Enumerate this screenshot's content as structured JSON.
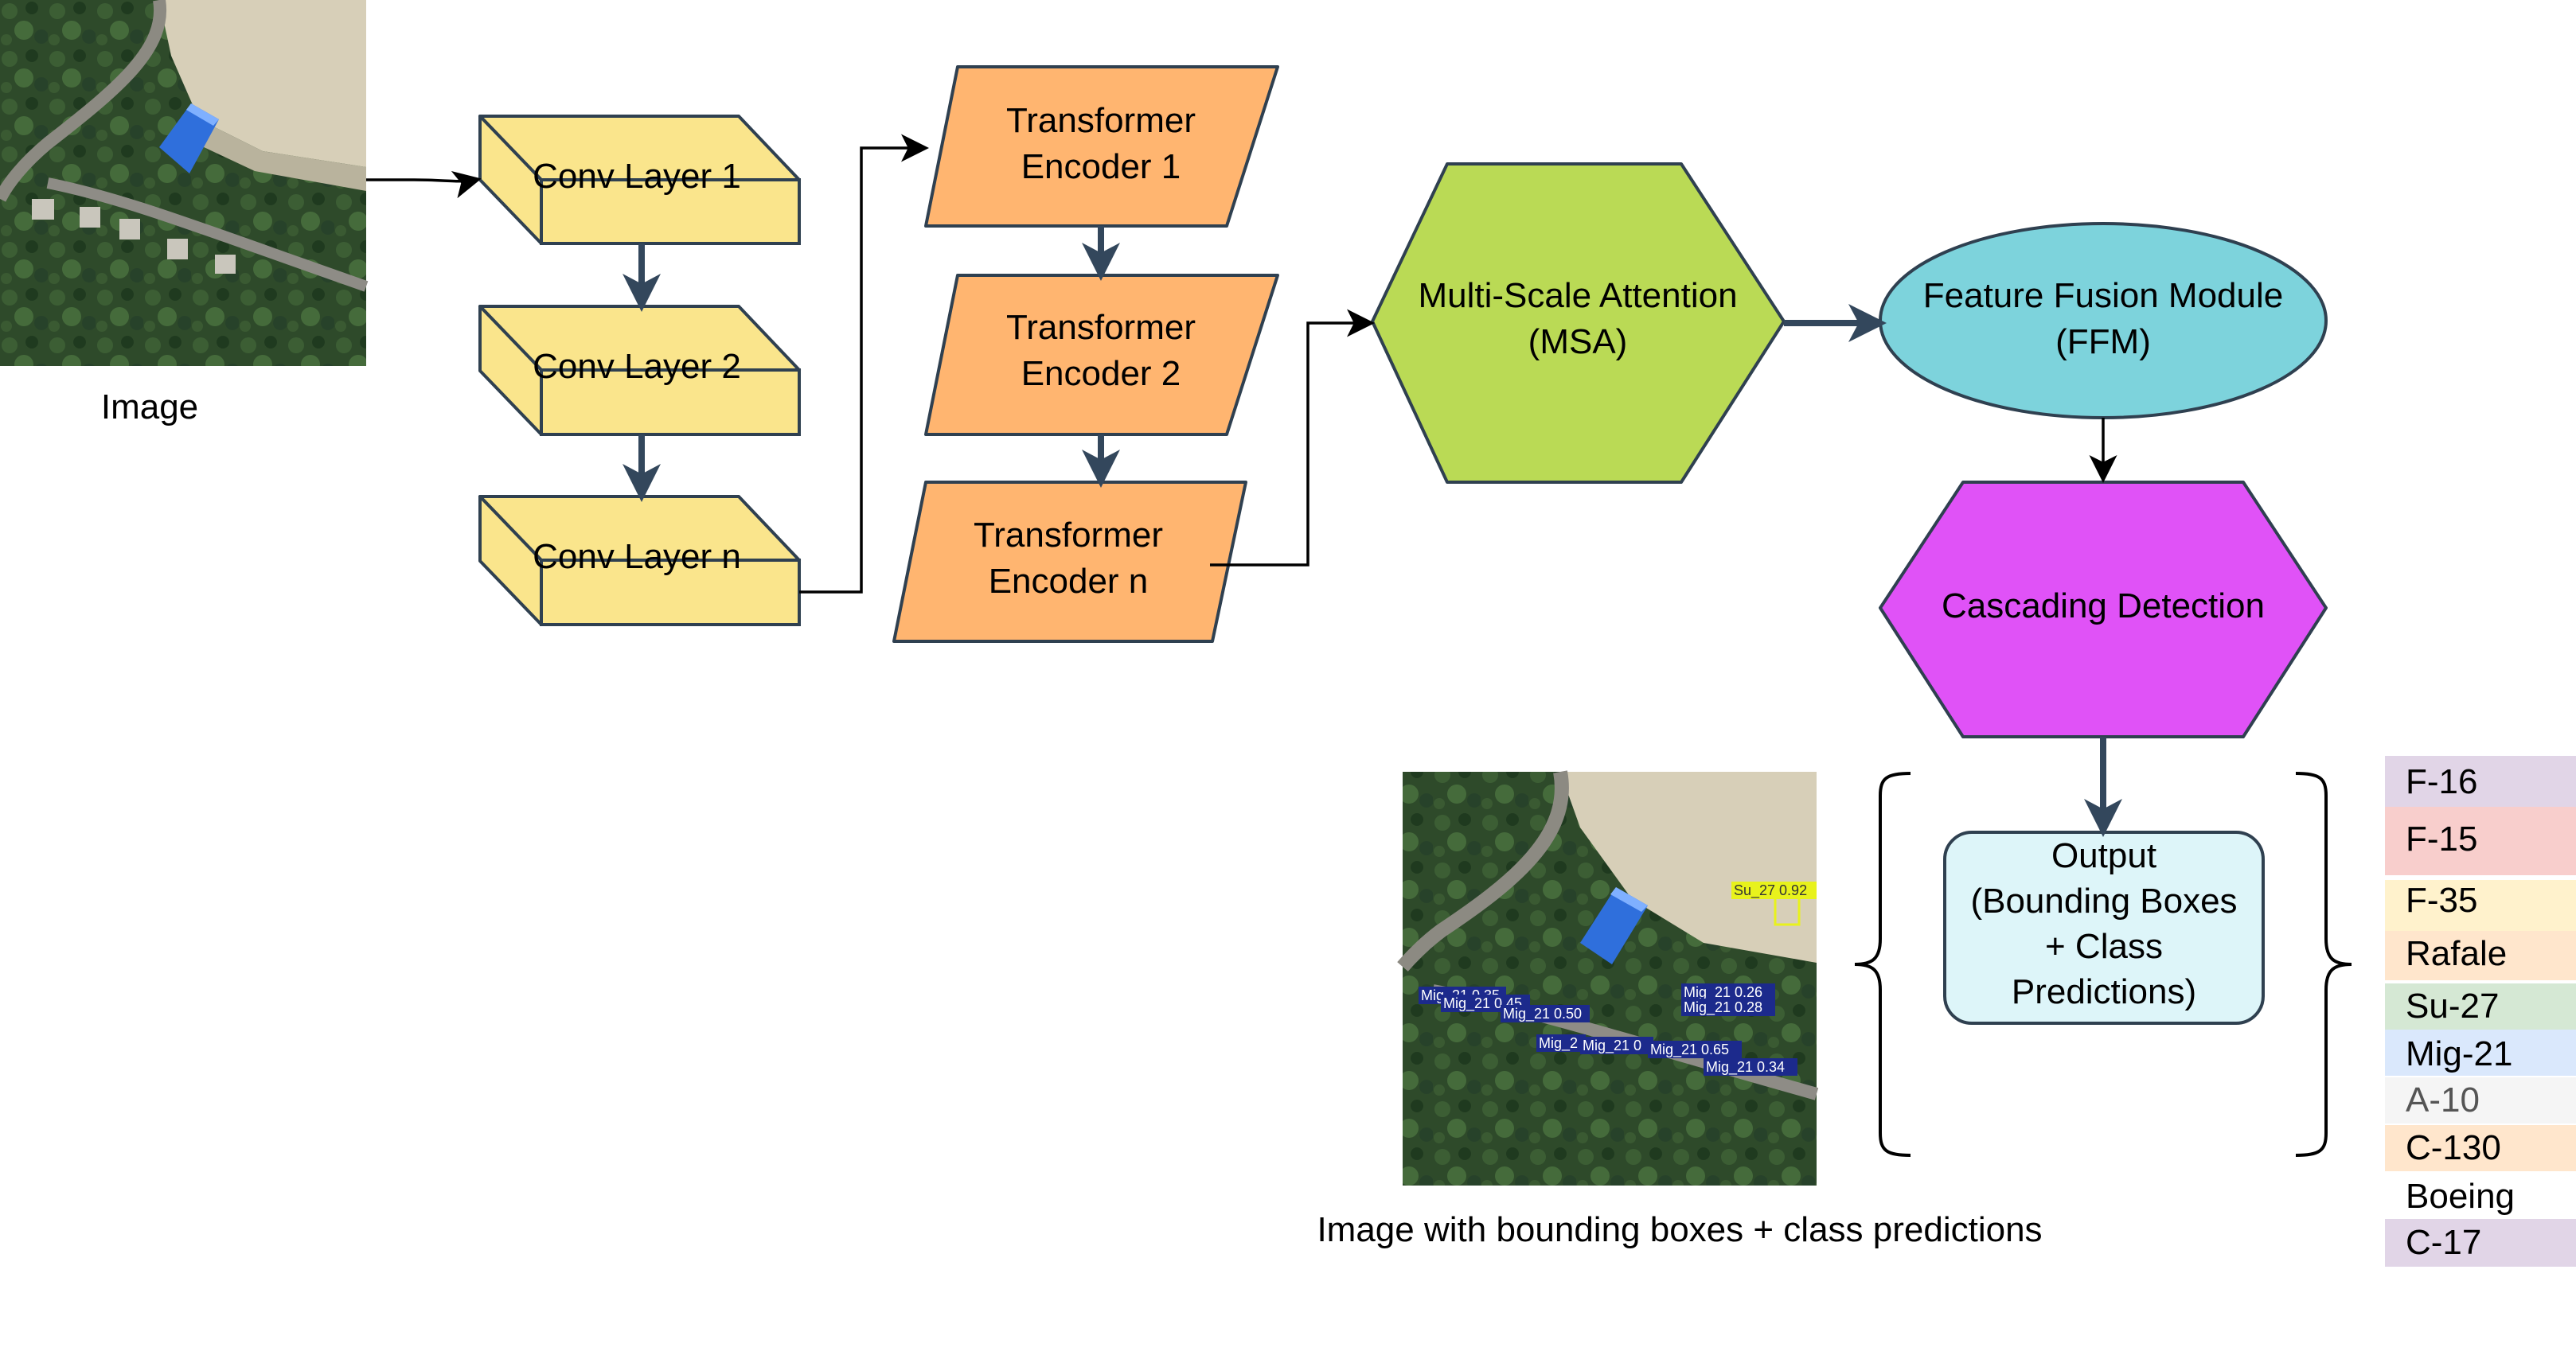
{
  "input_image": {
    "caption": "Image"
  },
  "conv_layers": [
    {
      "label": "Conv Layer 1"
    },
    {
      "label": "Conv Layer 2"
    },
    {
      "label": "Conv Layer n"
    }
  ],
  "transformer_encoders": [
    {
      "line1": "Transformer",
      "line2": "Encoder 1"
    },
    {
      "line1": "Transformer",
      "line2": "Encoder 2"
    },
    {
      "line1": "Transformer",
      "line2": "Encoder n"
    }
  ],
  "msa": {
    "line1": "Multi-Scale Attention",
    "line2": "(MSA)"
  },
  "ffm": {
    "line1": "Feature Fusion Module",
    "line2": "(FFM)"
  },
  "cascading": {
    "label": "Cascading Detection"
  },
  "output": {
    "line1": "Output",
    "line2": "(Bounding Boxes",
    "line3": "+ Class",
    "line4": "Predictions)"
  },
  "output_image": {
    "caption": "Image with bounding boxes + class predictions",
    "detections": [
      {
        "text": "Su_27 0.92"
      },
      {
        "text": "Mig_21 0.35"
      },
      {
        "text": "Mig_21 0.45"
      },
      {
        "text": "Mig_21 0.50"
      },
      {
        "text": "Mig_21 0.26"
      },
      {
        "text": "Mig_21 0.28"
      },
      {
        "text": "Mig_2"
      },
      {
        "text": "Mig_21 0"
      },
      {
        "text": "Mig_21 0.65"
      },
      {
        "text": "Mig_21 0.34"
      }
    ]
  },
  "classes": [
    {
      "name": "F-16",
      "color": "#e1d5e7"
    },
    {
      "name": "F-15",
      "color": "#f8cecc"
    },
    {
      "name": "F-35",
      "color": "#fff2cc"
    },
    {
      "name": "Rafale",
      "color": "#ffe6cc"
    },
    {
      "name": "Su-27",
      "color": "#d5e8d4"
    },
    {
      "name": "Mig-21",
      "color": "#dae8fc"
    },
    {
      "name": "A-10",
      "color": "#f5f5f5"
    },
    {
      "name": "C-130",
      "color": "#ffe6cc"
    },
    {
      "name": "Boeing",
      "color": "#ffffff"
    },
    {
      "name": "C-17",
      "color": "#e1d5e7"
    }
  ],
  "colors": {
    "conv": "#fae58c",
    "transformer": "#ffb570",
    "msa": "#b9e0a5",
    "msa_fill": "#bada55",
    "ffm": "#7dd3dc",
    "cascading": "#e052f7",
    "output": "#ddf5f9",
    "stroke": "#2f4050"
  }
}
